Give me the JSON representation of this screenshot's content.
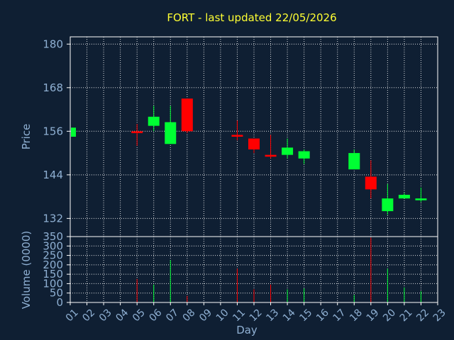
{
  "chart_data": [
    {
      "type": "candlestick",
      "title": "FORT - last updated 22/05/2026",
      "ylabel": "Price",
      "ylim": [
        127,
        182
      ],
      "yticks": [
        132,
        144,
        156,
        168,
        180
      ],
      "grid": true,
      "up_color": "#00ff33",
      "down_color": "#ff0000",
      "candles": [
        {
          "day": "01",
          "open": 154.5,
          "close": 157.0,
          "high": 157.0,
          "low": 154.5
        },
        {
          "day": "05",
          "open": 156.0,
          "close": 155.5,
          "high": 158.0,
          "low": 152.0
        },
        {
          "day": "06",
          "open": 157.5,
          "close": 160.0,
          "high": 163.0,
          "low": 156.0
        },
        {
          "day": "07",
          "open": 152.5,
          "close": 158.5,
          "high": 163.0,
          "low": 152.5
        },
        {
          "day": "08",
          "open": 165.0,
          "close": 156.0,
          "high": 165.0,
          "low": 155.5
        },
        {
          "day": "11",
          "open": 155.0,
          "close": 154.5,
          "high": 159.0,
          "low": 153.5
        },
        {
          "day": "12",
          "open": 154.0,
          "close": 151.0,
          "high": 154.0,
          "low": 150.0
        },
        {
          "day": "13",
          "open": 149.5,
          "close": 149.0,
          "high": 155.0,
          "low": 148.5
        },
        {
          "day": "14",
          "open": 149.5,
          "close": 151.5,
          "high": 154.0,
          "low": 148.5
        },
        {
          "day": "15",
          "open": 148.5,
          "close": 150.5,
          "high": 151.0,
          "low": 147.0
        },
        {
          "day": "18",
          "open": 145.5,
          "close": 150.0,
          "high": 151.0,
          "low": 145.5
        },
        {
          "day": "19",
          "open": 143.5,
          "close": 140.0,
          "high": 148.0,
          "low": 137.5
        },
        {
          "day": "20",
          "open": 134.0,
          "close": 137.5,
          "high": 141.5,
          "low": 133.0
        },
        {
          "day": "21",
          "open": 137.5,
          "close": 138.5,
          "high": 139.0,
          "low": 137.5
        },
        {
          "day": "22",
          "open": 137.0,
          "close": 137.5,
          "high": 140.5,
          "low": 136.5
        }
      ]
    },
    {
      "type": "bar",
      "ylabel": "Volume (0000)",
      "xlabel": "Day",
      "ylim": [
        0,
        350
      ],
      "yticks": [
        0,
        50,
        100,
        150,
        200,
        250,
        300,
        350
      ],
      "grid": true,
      "categories": [
        "01",
        "02",
        "03",
        "04",
        "05",
        "06",
        "07",
        "08",
        "09",
        "10",
        "11",
        "12",
        "13",
        "14",
        "15",
        "16",
        "17",
        "18",
        "19",
        "20",
        "21",
        "22",
        "23"
      ],
      "bars": [
        {
          "day": "01",
          "value": 3,
          "direction": "up"
        },
        {
          "day": "05",
          "value": 125,
          "direction": "down"
        },
        {
          "day": "06",
          "value": 95,
          "direction": "up"
        },
        {
          "day": "07",
          "value": 225,
          "direction": "up"
        },
        {
          "day": "08",
          "value": 35,
          "direction": "down"
        },
        {
          "day": "11",
          "value": 180,
          "direction": "down"
        },
        {
          "day": "12",
          "value": 70,
          "direction": "down"
        },
        {
          "day": "13",
          "value": 95,
          "direction": "down"
        },
        {
          "day": "14",
          "value": 70,
          "direction": "up"
        },
        {
          "day": "15",
          "value": 75,
          "direction": "up"
        },
        {
          "day": "18",
          "value": 40,
          "direction": "up"
        },
        {
          "day": "19",
          "value": 345,
          "direction": "down"
        },
        {
          "day": "20",
          "value": 180,
          "direction": "up"
        },
        {
          "day": "21",
          "value": 80,
          "direction": "up"
        },
        {
          "day": "22",
          "value": 60,
          "direction": "up"
        }
      ]
    }
  ]
}
